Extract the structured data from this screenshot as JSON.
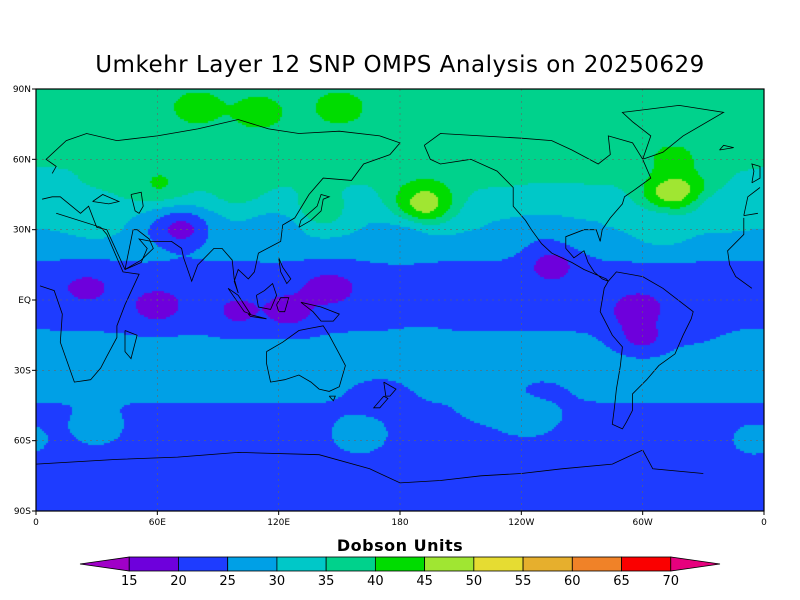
{
  "title": "Umkehr Layer 12 SNP OMPS Analysis on 20250629",
  "map": {
    "projection": "cylindrical equidistant",
    "lon_range": [
      0,
      360
    ],
    "lat_range": [
      -90,
      90
    ],
    "lat_ticks": [
      {
        "lat": 90,
        "label": "90N"
      },
      {
        "lat": 60,
        "label": "60N"
      },
      {
        "lat": 30,
        "label": "30N"
      },
      {
        "lat": 0,
        "label": "EQ"
      },
      {
        "lat": -30,
        "label": "30S"
      },
      {
        "lat": -60,
        "label": "60S"
      },
      {
        "lat": -90,
        "label": "90S"
      }
    ],
    "lon_ticks": [
      {
        "lon": 0,
        "label": "0"
      },
      {
        "lon": 60,
        "label": "60E"
      },
      {
        "lon": 120,
        "label": "120E"
      },
      {
        "lon": 180,
        "label": "180"
      },
      {
        "lon": 240,
        "label": "120W"
      },
      {
        "lon": 300,
        "label": "60W"
      },
      {
        "lon": 360,
        "label": "0"
      }
    ],
    "gridlines": true,
    "coastlines": true
  },
  "colorbar": {
    "title": "Dobson Units",
    "levels": [
      "15",
      "20",
      "25",
      "30",
      "35",
      "40",
      "45",
      "50",
      "55",
      "60",
      "65",
      "70"
    ],
    "colors": [
      "#a000c8",
      "#6e00dc",
      "#1e3cff",
      "#00a0e6",
      "#00c8c8",
      "#00d28c",
      "#00dc00",
      "#a0e632",
      "#e6dc32",
      "#e6af2d",
      "#f08228",
      "#fa0000",
      "#e6007d"
    ]
  },
  "chart_data": {
    "type": "heatmap",
    "variable": "Umkehr Layer 12 ozone",
    "units": "Dobson Units",
    "date": "20250629",
    "features": [
      {
        "type": "band",
        "lat": [
          62,
          90
        ],
        "value": 38
      },
      {
        "type": "band",
        "lat": [
          40,
          62
        ],
        "value": 35
      },
      {
        "type": "band",
        "lat": [
          25,
          40
        ],
        "value": 30
      },
      {
        "type": "band",
        "lat": [
          -15,
          25
        ],
        "value": 22
      },
      {
        "type": "band",
        "lat": [
          -40,
          -15
        ],
        "value": 27
      },
      {
        "type": "band",
        "lat": [
          -90,
          -40
        ],
        "value": 22
      },
      {
        "type": "blob",
        "lon": 5,
        "lat": 45,
        "value": 32
      },
      {
        "type": "blob",
        "lon": 30,
        "lat": 35,
        "value": 32
      },
      {
        "type": "blob",
        "lon": 80,
        "lat": 82,
        "value": 42
      },
      {
        "type": "blob",
        "lon": 150,
        "lat": 82,
        "value": 42
      },
      {
        "type": "blob",
        "lon": 110,
        "lat": 80,
        "value": 42
      },
      {
        "type": "blob",
        "lon": 40,
        "lat": 70,
        "value": 39
      },
      {
        "type": "blob",
        "lon": 60,
        "lat": 50,
        "value": 41
      },
      {
        "type": "blob",
        "lon": 40,
        "lat": 50,
        "value": 38
      },
      {
        "type": "blob",
        "lon": 100,
        "lat": 47,
        "value": 37
      },
      {
        "type": "blob",
        "lon": 140,
        "lat": 38,
        "value": 39
      },
      {
        "type": "blob",
        "lon": 190,
        "lat": 68,
        "value": 38
      },
      {
        "type": "blob",
        "lon": 225,
        "lat": 60,
        "value": 38
      },
      {
        "type": "blob",
        "lon": 192,
        "lat": 45,
        "value": 43
      },
      {
        "type": "blob",
        "lon": 192,
        "lat": 40,
        "value": 47
      },
      {
        "type": "blob",
        "lon": 277,
        "lat": 65,
        "value": 40
      },
      {
        "type": "blob",
        "lon": 315,
        "lat": 60,
        "value": 42
      },
      {
        "type": "blob",
        "lon": 318,
        "lat": 47,
        "value": 44
      },
      {
        "type": "blob",
        "lon": 315,
        "lat": 45,
        "value": 48
      },
      {
        "type": "blob",
        "lon": 310,
        "lat": 30,
        "value": 32
      },
      {
        "type": "blob",
        "lon": 340,
        "lat": 38,
        "value": 31
      },
      {
        "type": "blob",
        "lon": 60,
        "lat": 28,
        "value": 27
      },
      {
        "type": "blob",
        "lon": 250,
        "lat": 25,
        "value": 26
      },
      {
        "type": "blob",
        "lon": 30,
        "lat": 40,
        "value": 33
      },
      {
        "type": "blob",
        "lon": 120,
        "lat": 30,
        "value": 28
      },
      {
        "type": "blob",
        "lon": 180,
        "lat": 25,
        "value": 27
      },
      {
        "type": "blob",
        "lon": 72,
        "lat": 30,
        "value": 18
      },
      {
        "type": "blob",
        "lon": 25,
        "lat": 5,
        "value": 19
      },
      {
        "type": "blob",
        "lon": 125,
        "lat": -5,
        "value": 18
      },
      {
        "type": "blob",
        "lon": 100,
        "lat": -5,
        "value": 19
      },
      {
        "type": "blob",
        "lon": 145,
        "lat": 5,
        "value": 18
      },
      {
        "type": "blob",
        "lon": 60,
        "lat": -3,
        "value": 18
      },
      {
        "type": "blob",
        "lon": 255,
        "lat": 15,
        "value": 18
      },
      {
        "type": "blob",
        "lon": 298,
        "lat": -5,
        "value": 17
      },
      {
        "type": "blob",
        "lon": 300,
        "lat": -15,
        "value": 18
      },
      {
        "type": "blob",
        "lon": 325,
        "lat": -10,
        "value": 23
      },
      {
        "type": "blob",
        "lon": 190,
        "lat": -20,
        "value": 26
      },
      {
        "type": "blob",
        "lon": 225,
        "lat": -45,
        "value": 28
      },
      {
        "type": "blob",
        "lon": 250,
        "lat": -42,
        "value": 23
      },
      {
        "type": "blob",
        "lon": 170,
        "lat": -42,
        "value": 22
      },
      {
        "type": "blob",
        "lon": 115,
        "lat": -30,
        "value": 27
      },
      {
        "type": "blob",
        "lon": 30,
        "lat": -55,
        "value": 28
      },
      {
        "type": "blob",
        "lon": 160,
        "lat": -58,
        "value": 29
      },
      {
        "type": "blob",
        "lon": 243,
        "lat": -50,
        "value": 30
      },
      {
        "type": "blob",
        "lon": 355,
        "lat": -25,
        "value": 28
      },
      {
        "type": "blob",
        "lon": 355,
        "lat": -60,
        "value": 27
      }
    ]
  }
}
